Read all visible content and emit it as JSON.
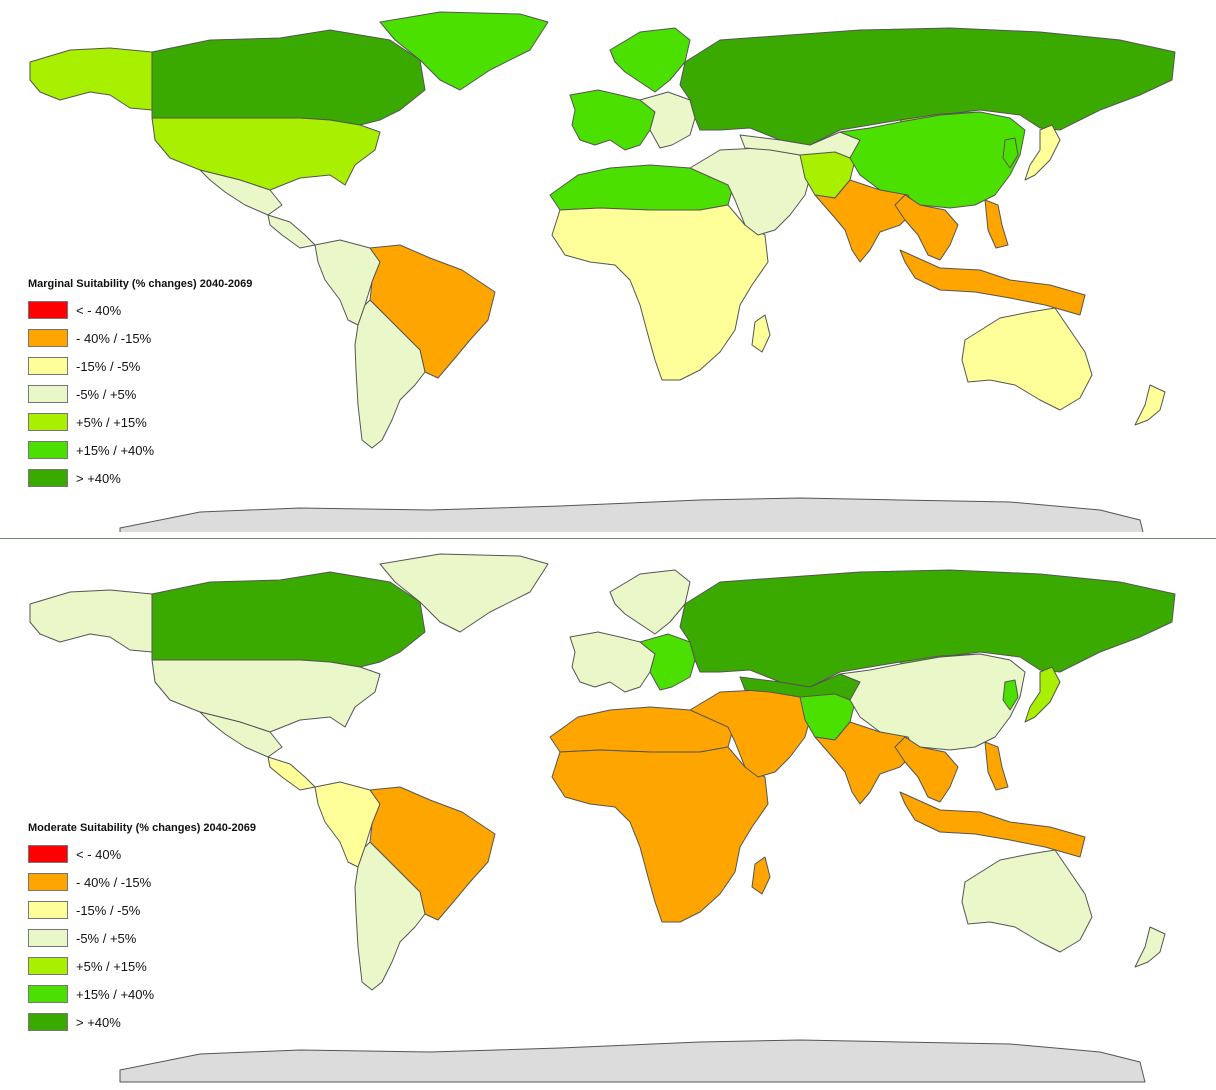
{
  "colors": {
    "lt_m40": "#ff0000",
    "m40_m15": "#ffa500",
    "m15_m5": "#ffff99",
    "m5_p5": "#eaf7c8",
    "p5_p15": "#a8f000",
    "p15_p40": "#4ce000",
    "gt_p40": "#3aaa00",
    "antarctica": "#dcdcdc"
  },
  "legend_items": [
    {
      "label": "< - 40%",
      "color": "#ff0000"
    },
    {
      "label": "- 40% / -15%",
      "color": "#ffa500"
    },
    {
      "label": "-15% / -5%",
      "color": "#ffff99"
    },
    {
      "label": "-5% / +5%",
      "color": "#eaf7c8"
    },
    {
      "label": "+5% / +15%",
      "color": "#a8f000"
    },
    {
      "label": "+15% / +40%",
      "color": "#4ce000"
    },
    {
      "label": "> +40%",
      "color": "#3aaa00"
    }
  ],
  "maps": [
    {
      "title": "Marginal Suitability (% changes) 2040-2069",
      "regions": {
        "alaska": "p5_p15",
        "canada": "gt_p40",
        "greenland": "p15_p40",
        "usa": "p5_p15",
        "mexico": "m5_p5",
        "central_america": "m5_p5",
        "nw_south_america": "m5_p5",
        "brazil": "m40_m15",
        "southern_cone": "m5_p5",
        "scandinavia": "p15_p40",
        "western_europe": "p15_p40",
        "eastern_europe": "m5_p5",
        "russia": "gt_p40",
        "north_africa": "p15_p40",
        "sub_saharan_africa": "m15_m5",
        "middle_east": "m5_p5",
        "central_asia": "m5_p5",
        "afghanistan": "p5_p15",
        "india": "m40_m15",
        "china": "p15_p40",
        "mongolia": "p5_p15",
        "southeast_asia": "m40_m15",
        "indonesia": "m40_m15",
        "japan": "m15_m5",
        "korea": "p15_p40",
        "philippines": "m40_m15",
        "australia": "m15_m5",
        "new_zealand": "m15_m5",
        "madagascar": "m15_m5"
      }
    },
    {
      "title": "Moderate Suitability (% changes) 2040-2069",
      "regions": {
        "alaska": "m5_p5",
        "canada": "gt_p40",
        "greenland": "m5_p5",
        "usa": "m5_p5",
        "mexico": "m5_p5",
        "central_america": "m15_m5",
        "nw_south_america": "m15_m5",
        "brazil": "m40_m15",
        "southern_cone": "m5_p5",
        "scandinavia": "m5_p5",
        "western_europe": "m5_p5",
        "eastern_europe": "p15_p40",
        "russia": "gt_p40",
        "north_africa": "m40_m15",
        "sub_saharan_africa": "m40_m15",
        "middle_east": "m40_m15",
        "central_asia": "gt_p40",
        "afghanistan": "p15_p40",
        "india": "m40_m15",
        "china": "m5_p5",
        "mongolia": "p15_p40",
        "southeast_asia": "m40_m15",
        "indonesia": "m40_m15",
        "japan": "p5_p15",
        "korea": "p15_p40",
        "philippines": "m40_m15",
        "australia": "m5_p5",
        "new_zealand": "m5_p5",
        "madagascar": "m40_m15"
      }
    }
  ]
}
